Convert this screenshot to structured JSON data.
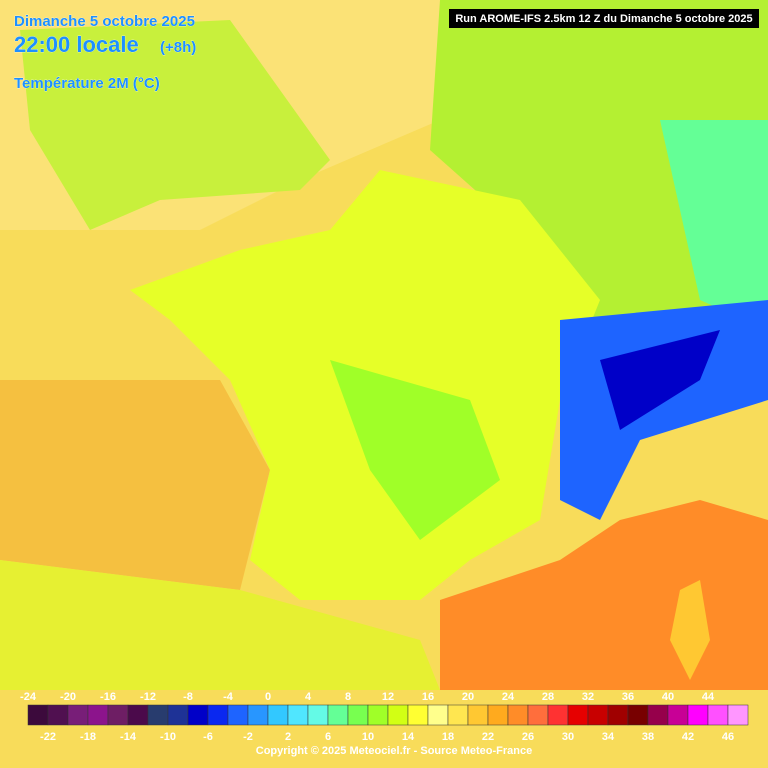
{
  "header": {
    "title": "Dimanche 5 octobre 2025",
    "time": "22:00 locale",
    "offset": "(+8h)",
    "variable": "Température 2M (°C)"
  },
  "run": "Run AROME-IFS 2.5km 12 Z du Dimanche 5 octobre 2025",
  "legend": {
    "values": [
      -24,
      -22,
      -20,
      -18,
      -16,
      -14,
      -12,
      -10,
      -8,
      -6,
      -4,
      -2,
      0,
      2,
      4,
      6,
      8,
      10,
      12,
      14,
      16,
      18,
      20,
      22,
      24,
      26,
      28,
      30,
      32,
      34,
      36,
      38,
      40,
      42,
      44,
      46
    ],
    "colors": [
      "#3c0a3c",
      "#501050",
      "#781e78",
      "#8c148c",
      "#6e1e64",
      "#4b0a4b",
      "#283c6e",
      "#1e3296",
      "#0000c8",
      "#0a28f0",
      "#1e64ff",
      "#2896ff",
      "#32c8ff",
      "#50e6ff",
      "#64fae6",
      "#64ff96",
      "#78ff50",
      "#a0ff28",
      "#d2ff14",
      "#ffff32",
      "#ffff8c",
      "#ffe650",
      "#ffc832",
      "#ffaa1e",
      "#ff8c28",
      "#ff6e3c",
      "#ff3232",
      "#e60000",
      "#c80000",
      "#a00000",
      "#780000",
      "#96004b",
      "#c80096",
      "#ff00ff",
      "#ff50ff",
      "#ff96ff"
    ]
  },
  "footer": "Copyright © 2025 Meteociel.fr - Source Meteo-France"
}
